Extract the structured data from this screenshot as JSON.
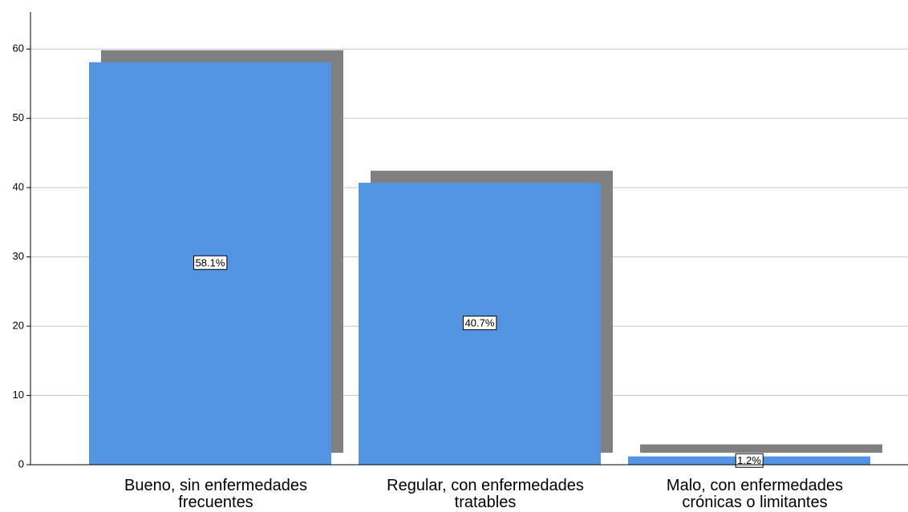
{
  "chart_data": {
    "type": "bar",
    "categories": [
      "Bueno, sin enfermedades frecuentes",
      "Regular, con enfermedades tratables",
      "Malo, con enfermedades crónicas o limitantes"
    ],
    "values": [
      58.1,
      40.7,
      1.2
    ],
    "value_labels": [
      "58.1%",
      "40.7%",
      "1.2%"
    ],
    "color": "#5294e2",
    "shadow_color": "#808080",
    "ylim": [
      0,
      65
    ],
    "yticks": [
      0,
      10,
      20,
      30,
      40,
      50,
      60
    ],
    "grid": true
  }
}
